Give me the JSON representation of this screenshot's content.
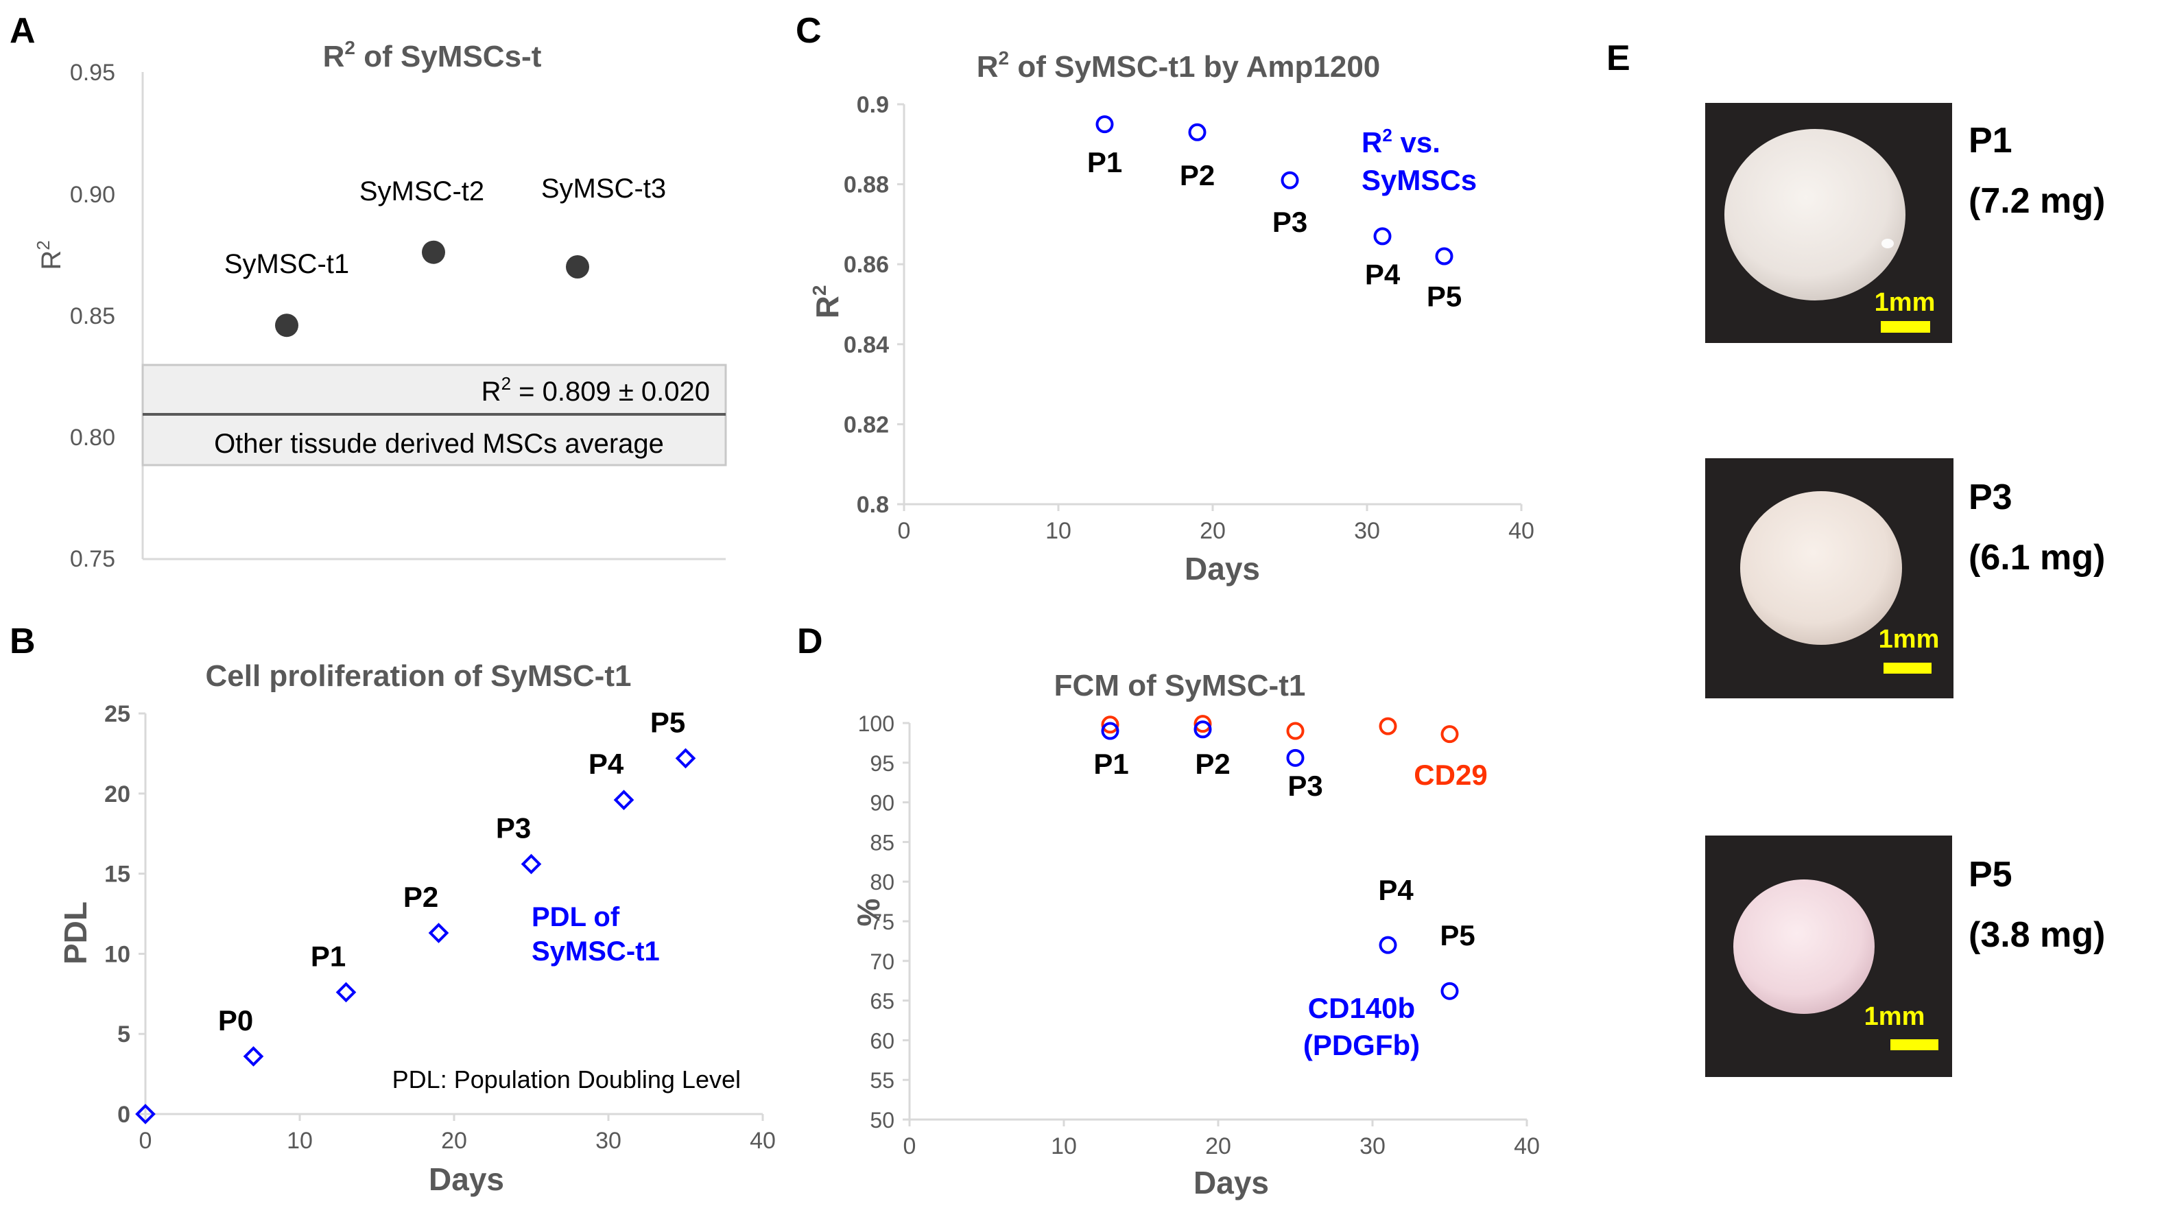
{
  "panels": {
    "A": {
      "letter": "A",
      "title_main": "R",
      "title_sup": "2",
      "title_rest": " of SyMSCs-t",
      "ylabel_main": "R",
      "ylabel_sup": "2",
      "y_ticks": [
        "0.95",
        "0.90",
        "0.85",
        "0.80",
        "0.75"
      ],
      "points": [
        {
          "label": "SyMSC-t1",
          "y": 0.846
        },
        {
          "label": "SyMSC-t2",
          "y": 0.876
        },
        {
          "label": "SyMSC-t3",
          "y": 0.87
        }
      ],
      "band_text_main": "R",
      "band_text_sup": "2",
      "band_text_rest": " = 0.809 ± 0.020",
      "band_label": "Other tissude derived MSCs average",
      "band_mean": 0.809,
      "band_sd": 0.02
    },
    "B": {
      "letter": "B",
      "title": "Cell proliferation  of SyMSC-t1",
      "xlabel": "Days",
      "ylabel": "PDL",
      "x_ticks": [
        "0",
        "10",
        "20",
        "30",
        "40"
      ],
      "y_ticks": [
        "0",
        "5",
        "10",
        "15",
        "20",
        "25"
      ],
      "series_label_1": "PDL of",
      "series_label_2": "SyMSC-t1",
      "footnote": "PDL: Population Doubling Level",
      "points": [
        {
          "x": 0,
          "y": 0,
          "label": ""
        },
        {
          "x": 7,
          "y": 3.6,
          "label": "P0"
        },
        {
          "x": 13,
          "y": 7.6,
          "label": "P1"
        },
        {
          "x": 19,
          "y": 11.3,
          "label": "P2"
        },
        {
          "x": 25,
          "y": 15.6,
          "label": "P3"
        },
        {
          "x": 31,
          "y": 19.6,
          "label": "P4"
        },
        {
          "x": 35,
          "y": 22.2,
          "label": "P5"
        }
      ]
    },
    "C": {
      "letter": "C",
      "title_main": "R",
      "title_sup": "2",
      "title_rest": " of SyMSC-t1 by Amp1200",
      "xlabel": "Days",
      "ylabel_main": "R",
      "ylabel_sup": "2",
      "x_ticks": [
        "0",
        "10",
        "20",
        "30",
        "40"
      ],
      "y_ticks": [
        "0.8",
        "0.82",
        "0.84",
        "0.86",
        "0.88",
        "0.9"
      ],
      "legend_1_main": "R",
      "legend_1_sup": "2",
      "legend_1_rest": " vs.",
      "legend_2": "SyMSCs",
      "points": [
        {
          "x": 13,
          "y": 0.895,
          "label": "P1"
        },
        {
          "x": 19,
          "y": 0.893,
          "label": "P2"
        },
        {
          "x": 25,
          "y": 0.881,
          "label": "P3"
        },
        {
          "x": 31,
          "y": 0.867,
          "label": "P4"
        },
        {
          "x": 35,
          "y": 0.862,
          "label": "P5"
        }
      ]
    },
    "D": {
      "letter": "D",
      "title": "FCM of SyMSC-t1",
      "xlabel": "Days",
      "ylabel": "%",
      "x_ticks": [
        "0",
        "10",
        "20",
        "30",
        "40"
      ],
      "y_ticks": [
        "50",
        "55",
        "60",
        "65",
        "70",
        "75",
        "80",
        "85",
        "90",
        "95",
        "100"
      ],
      "cd29_label": "CD29",
      "cd140b_label_1": "CD140b",
      "cd140b_label_2": "(PDGFb)",
      "point_labels": [
        "P1",
        "P2",
        "P3",
        "P4",
        "P5"
      ],
      "cd29_color": "#ff3300",
      "cd140b_color": "#0000ff"
    },
    "E": {
      "letter": "E",
      "scale_label": "1mm",
      "scale_color": "#ffff00",
      "items": [
        {
          "passage": "P1",
          "mass": "(7.2 mg)"
        },
        {
          "passage": "P3",
          "mass": "(6.1 mg)"
        },
        {
          "passage": "P5",
          "mass": "(3.8 mg)"
        }
      ]
    }
  },
  "chart_data": [
    {
      "type": "scatter",
      "panel": "A",
      "title": "R2 of SyMSCs-t",
      "xlabel": "",
      "ylabel": "R2",
      "categories": [
        "SyMSC-t1",
        "SyMSC-t2",
        "SyMSC-t3"
      ],
      "values": [
        0.846,
        0.876,
        0.87
      ],
      "ylim": [
        0.75,
        0.95
      ],
      "reference_band": {
        "label": "Other tissude derived MSCs average",
        "mean": 0.809,
        "sd": 0.02
      }
    },
    {
      "type": "scatter",
      "panel": "B",
      "title": "Cell proliferation of SyMSC-t1",
      "xlabel": "Days",
      "ylabel": "PDL",
      "x": [
        0,
        7,
        13,
        19,
        25,
        31,
        35
      ],
      "y": [
        0,
        3.6,
        7.6,
        11.3,
        15.6,
        19.6,
        22.2
      ],
      "point_labels": [
        "",
        "P0",
        "P1",
        "P2",
        "P3",
        "P4",
        "P5"
      ],
      "xlim": [
        0,
        40
      ],
      "ylim": [
        0,
        25
      ],
      "series": [
        {
          "name": "PDL of SyMSC-t1"
        }
      ]
    },
    {
      "type": "scatter",
      "panel": "C",
      "title": "R2 of SyMSC-t1 by Amp1200",
      "xlabel": "Days",
      "ylabel": "R2",
      "x": [
        13,
        19,
        25,
        31,
        35
      ],
      "y": [
        0.895,
        0.893,
        0.881,
        0.867,
        0.862
      ],
      "point_labels": [
        "P1",
        "P2",
        "P3",
        "P4",
        "P5"
      ],
      "xlim": [
        0,
        40
      ],
      "ylim": [
        0.8,
        0.9
      ],
      "series": [
        {
          "name": "R2 vs. SyMSCs"
        }
      ]
    },
    {
      "type": "scatter",
      "panel": "D",
      "title": "FCM of SyMSC-t1",
      "xlabel": "Days",
      "ylabel": "%",
      "x": [
        13,
        19,
        25,
        31,
        35
      ],
      "point_labels": [
        "P1",
        "P2",
        "P3",
        "P4",
        "P5"
      ],
      "xlim": [
        0,
        40
      ],
      "ylim": [
        50,
        100
      ],
      "series": [
        {
          "name": "CD29",
          "values": [
            99.8,
            99.9,
            99.0,
            99.6,
            98.6
          ]
        },
        {
          "name": "CD140b (PDGFb)",
          "values": [
            99.0,
            99.2,
            95.6,
            72.0,
            66.2
          ]
        }
      ]
    }
  ]
}
